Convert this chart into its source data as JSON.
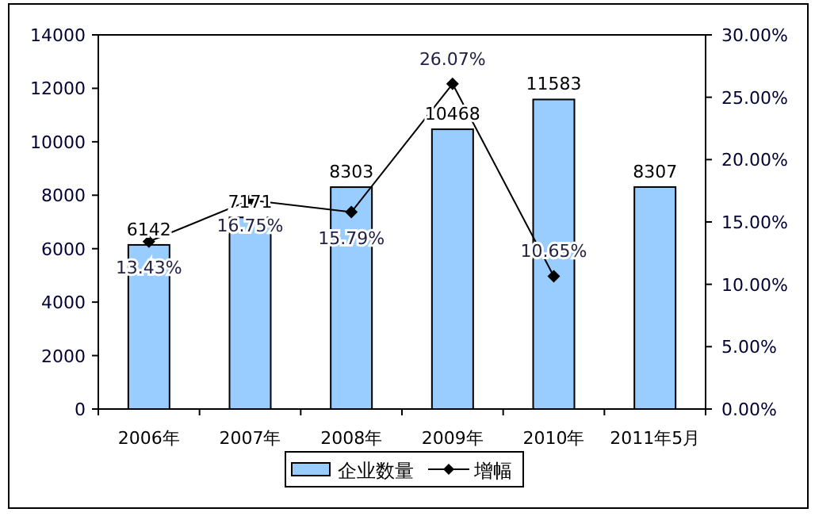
{
  "chart_data": {
    "type": "bar",
    "categories": [
      "2006年",
      "2007年",
      "2008年",
      "2009年",
      "2010年",
      "2011年5月"
    ],
    "series": [
      {
        "name": "企业数量",
        "color": "#99ccff",
        "values": [
          6142,
          7171,
          8303,
          10468,
          11583,
          8307
        ],
        "value_labels": [
          "6142",
          "7171",
          "8303",
          "10468",
          "11583",
          "8307"
        ]
      },
      {
        "name": "增幅",
        "type": "line",
        "axis": "y2",
        "color": "#000000",
        "marker": "diamond",
        "values": [
          13.43,
          16.75,
          15.79,
          26.07,
          10.65,
          null
        ],
        "value_labels": [
          "13.43%",
          "16.75%",
          "15.79%",
          "26.07%",
          "10.65%",
          null
        ]
      }
    ],
    "ylim": [
      0,
      14000
    ],
    "yticks": [
      0,
      2000,
      4000,
      6000,
      8000,
      10000,
      12000,
      14000
    ],
    "y2lim": [
      0,
      30
    ],
    "y2ticks": [
      {
        "value": 0,
        "label": "0.00%"
      },
      {
        "value": 5,
        "label": "5.00%"
      },
      {
        "value": 10,
        "label": "10.00%"
      },
      {
        "value": 15,
        "label": "15.00%"
      },
      {
        "value": 20,
        "label": "20.00%"
      },
      {
        "value": 25,
        "label": "25.00%"
      },
      {
        "value": 30,
        "label": "30.00%"
      }
    ],
    "legend": "bottom",
    "grid": false
  }
}
